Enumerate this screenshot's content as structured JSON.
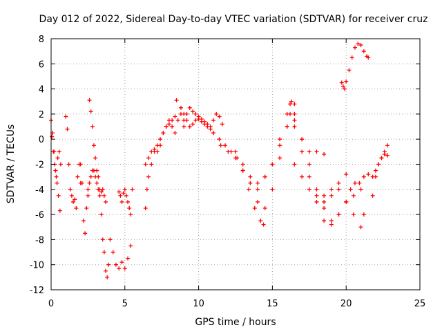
{
  "chart_data": {
    "type": "scatter",
    "title": "Day 012 of 2022, Sidereal Day-to-day VTEC variation (SDTVAR) for receiver cruz",
    "xlabel": "GPS time / hours",
    "ylabel": "SDTVAR / TECUs",
    "xlim": [
      0,
      25
    ],
    "ylim": [
      -12,
      8
    ],
    "xticks": [
      0,
      5,
      10,
      15,
      20,
      25
    ],
    "yticks": [
      -12,
      -10,
      -8,
      -6,
      -4,
      -2,
      0,
      2,
      4,
      6,
      8
    ],
    "grid": true,
    "marker": "+",
    "color": "#ff0000",
    "series": [
      {
        "name": "s1",
        "x": [
          0.0,
          0.1,
          0.2,
          0.3,
          0.4,
          0.5,
          0.6
        ],
        "y": [
          1.5,
          0.5,
          -1.0,
          -2.5,
          -3.5,
          -4.5,
          -5.7
        ]
      },
      {
        "name": "s2",
        "x": [
          0.05,
          0.15,
          0.25,
          0.35,
          0.45,
          0.55,
          0.65
        ],
        "y": [
          0.2,
          -1.0,
          -2.0,
          -3.0,
          -1.5,
          -1.0,
          -2.0
        ]
      },
      {
        "name": "s3",
        "x": [
          1.0,
          1.1,
          1.2,
          1.3,
          1.4,
          1.5,
          1.6,
          1.7,
          1.8,
          1.9,
          2.0
        ],
        "y": [
          1.8,
          0.8,
          -2.0,
          -4.0,
          -4.5,
          -5.0,
          -4.8,
          -5.5,
          -3.0,
          -2.0,
          -3.5
        ]
      },
      {
        "name": "s4",
        "x": [
          2.0,
          2.1,
          2.2,
          2.3,
          2.4,
          2.5
        ],
        "y": [
          -2.0,
          -3.5,
          -6.5,
          -7.5,
          -5.5,
          -4.0
        ]
      },
      {
        "name": "s5",
        "x": [
          2.6,
          2.7,
          2.8,
          2.9,
          3.0,
          3.1,
          3.2,
          3.3,
          3.4,
          3.5,
          3.6,
          3.7,
          3.8,
          3.9
        ],
        "y": [
          3.1,
          2.2,
          1.0,
          -0.5,
          -1.5,
          -2.5,
          -3.0,
          -4.0,
          -6.0,
          -8.0,
          -9.0,
          -10.5,
          -11.0,
          -10.0
        ]
      },
      {
        "name": "s6",
        "x": [
          2.5,
          2.6,
          2.7,
          2.8,
          2.9,
          3.0,
          3.1,
          3.2,
          3.3,
          3.4,
          3.5,
          3.6,
          3.7
        ],
        "y": [
          -4.5,
          -3.5,
          -3.0,
          -2.5,
          -2.5,
          -3.0,
          -3.5,
          -4.0,
          -4.5,
          -4.2,
          -4.0,
          -4.5,
          -5.0
        ]
      },
      {
        "name": "s7",
        "x": [
          4.0,
          4.2,
          4.4,
          4.6,
          4.8,
          5.0,
          5.2,
          5.4
        ],
        "y": [
          -8.0,
          -9.0,
          -10.0,
          -10.3,
          -9.8,
          -10.3,
          -9.5,
          -8.5
        ]
      },
      {
        "name": "s8",
        "x": [
          4.6,
          4.7,
          4.8,
          4.9,
          5.0,
          5.1,
          5.2,
          5.3,
          5.4,
          5.5
        ],
        "y": [
          -4.2,
          -4.5,
          -5.0,
          -4.3,
          -4.0,
          -4.5,
          -5.0,
          -5.5,
          -6.0,
          -4.0
        ]
      },
      {
        "name": "s9",
        "x": [
          6.4,
          6.5,
          6.6,
          6.8,
          7.0,
          7.2,
          7.4,
          7.6,
          7.8,
          8.0,
          8.2,
          8.4
        ],
        "y": [
          -5.5,
          -4.0,
          -3.0,
          -2.0,
          -1.0,
          -0.5,
          0.0,
          0.5,
          1.0,
          1.2,
          1.5,
          1.8
        ]
      },
      {
        "name": "s10",
        "x": [
          6.4,
          6.6,
          6.8,
          7.0,
          7.2,
          7.4,
          7.6,
          7.8,
          8.0,
          8.2,
          8.4,
          8.6,
          8.8,
          9.0
        ],
        "y": [
          -2.0,
          -1.5,
          -1.0,
          -0.8,
          -1.0,
          -0.5,
          0.5,
          1.0,
          1.5,
          1.0,
          0.5,
          1.5,
          2.0,
          1.5
        ]
      },
      {
        "name": "s11",
        "x": [
          8.5,
          8.8,
          9.0,
          9.2,
          9.4,
          9.6,
          9.8,
          10.0,
          10.2,
          10.4,
          10.6,
          10.8,
          11.0
        ],
        "y": [
          3.1,
          2.5,
          2.0,
          1.5,
          1.0,
          1.2,
          1.5,
          1.6,
          1.4,
          1.2,
          1.0,
          0.8,
          0.5
        ]
      },
      {
        "name": "s12",
        "x": [
          9.0,
          9.2,
          9.4,
          9.6,
          9.8,
          10.0,
          10.2,
          10.4,
          10.6,
          10.8,
          11.0,
          11.2,
          11.4,
          11.6
        ],
        "y": [
          1.0,
          2.0,
          2.5,
          2.2,
          2.0,
          1.8,
          1.6,
          1.4,
          1.2,
          1.0,
          1.5,
          2.0,
          1.8,
          1.2
        ]
      },
      {
        "name": "s13",
        "x": [
          11.0,
          11.4,
          11.8,
          12.2,
          12.6,
          13.0,
          13.4,
          13.8,
          14.2,
          14.4
        ],
        "y": [
          0.5,
          0.0,
          -0.5,
          -1.0,
          -1.5,
          -2.5,
          -4.0,
          -5.5,
          -6.5,
          -6.8
        ]
      },
      {
        "name": "s14",
        "x": [
          11.5,
          12.0,
          12.5,
          13.0,
          13.5,
          14.0,
          14.5,
          15.0,
          15.5,
          16.0,
          16.3
        ],
        "y": [
          -0.5,
          -1.0,
          -1.5,
          -2.5,
          -3.0,
          -3.5,
          -3.0,
          -2.0,
          0.0,
          2.0,
          3.0
        ]
      },
      {
        "name": "s15",
        "x": [
          12.5,
          13.0,
          13.5,
          14.0,
          14.5,
          15.0,
          15.5,
          16.0,
          16.5
        ],
        "y": [
          -1.0,
          -2.0,
          -3.5,
          -5.0,
          -5.5,
          -4.0,
          -1.5,
          1.0,
          2.8
        ]
      },
      {
        "name": "s16",
        "x": [
          14.0,
          14.5,
          15.0,
          15.5,
          16.0,
          16.2,
          16.5,
          17.0,
          17.5,
          18.0,
          18.5
        ],
        "y": [
          -4.0,
          -3.0,
          -2.0,
          -0.5,
          1.0,
          2.0,
          1.5,
          0.0,
          -1.0,
          -1.0,
          -1.2
        ]
      },
      {
        "name": "s17",
        "x": [
          16.2,
          16.5,
          17.0,
          17.5,
          18.0,
          18.5,
          19.0,
          19.5,
          20.0
        ],
        "y": [
          2.8,
          2.0,
          0.0,
          -2.0,
          -4.0,
          -5.5,
          -6.5,
          -6.0,
          -5.0
        ]
      },
      {
        "name": "s18",
        "x": [
          16.5,
          17.0,
          17.5,
          18.0,
          18.5,
          19.0,
          19.5,
          20.0,
          20.5,
          21.0
        ],
        "y": [
          1.0,
          -1.0,
          -3.0,
          -5.0,
          -6.5,
          -6.8,
          -6.0,
          -5.0,
          -4.5,
          -4.0
        ]
      },
      {
        "name": "s19",
        "x": [
          16.5,
          17.0,
          17.5,
          18.0,
          18.5,
          19.0,
          19.5,
          20.0
        ],
        "y": [
          -2.0,
          -3.0,
          -4.0,
          -4.5,
          -4.5,
          -4.0,
          -3.5,
          -2.8
        ]
      },
      {
        "name": "s20",
        "x": [
          18.5,
          19.0,
          19.5,
          20.0,
          20.5,
          21.0,
          21.2
        ],
        "y": [
          -5.0,
          -4.5,
          -4.0,
          -5.0,
          -6.0,
          -7.0,
          -6.0
        ]
      },
      {
        "name": "s21",
        "x": [
          19.7,
          19.8,
          19.9,
          20.0,
          20.2,
          20.4,
          20.6,
          20.8,
          21.0,
          21.2,
          21.4,
          21.5
        ],
        "y": [
          4.5,
          4.2,
          4.0,
          4.6,
          5.5,
          6.5,
          7.3,
          7.6,
          7.5,
          7.0,
          6.6,
          6.5
        ]
      },
      {
        "name": "s22",
        "x": [
          20.3,
          20.6,
          20.9,
          21.2,
          21.5,
          21.8,
          22.0,
          22.2,
          22.4,
          22.6,
          22.8
        ],
        "y": [
          -4.0,
          -3.5,
          -3.5,
          -3.0,
          -2.8,
          -3.0,
          -2.5,
          -2.0,
          -1.5,
          -1.0,
          -0.5
        ]
      },
      {
        "name": "s23",
        "x": [
          21.8,
          22.0,
          22.2,
          22.4,
          22.6,
          22.8
        ],
        "y": [
          -4.5,
          -3.0,
          -2.0,
          -1.5,
          -1.2,
          -1.3
        ]
      }
    ]
  }
}
